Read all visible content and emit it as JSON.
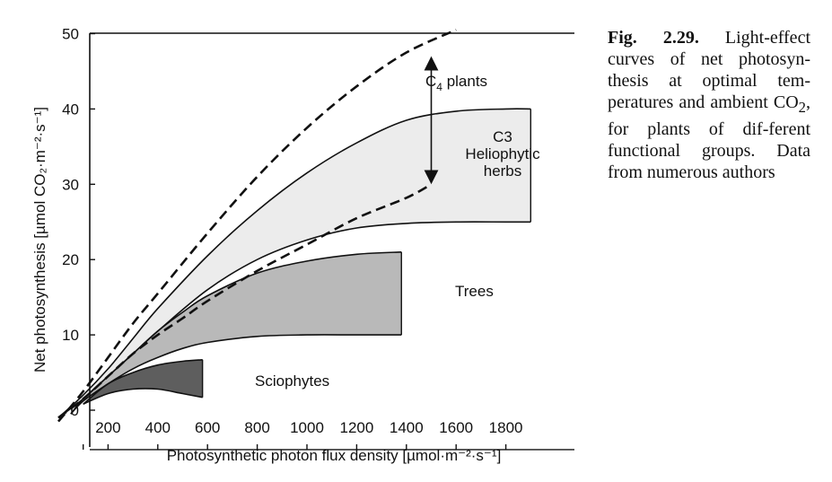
{
  "caption": {
    "fig_number": "Fig. 2.29.",
    "text_before_sub": "Light-effect curves of net photosyn-thesis at optimal tem-peratures and ambient CO",
    "subscript": "2",
    "text_after_sub": ", for plants of dif-ferent functional groups. Data from numerous authors"
  },
  "chart_data": {
    "type": "area",
    "xlabel": "Photosynthetic photon flux density [µmol·m⁻²·s⁻¹]",
    "ylabel": "Net photosynthesis [µmol CO₂·m⁻²·s⁻¹]",
    "xlim": [
      0,
      2000
    ],
    "ylim": [
      -5,
      50
    ],
    "x_ticks": [
      200,
      400,
      600,
      800,
      1000,
      1200,
      1400,
      1600,
      1800
    ],
    "x_tick_labels": [
      "200",
      "400",
      "600",
      "800",
      "1000",
      "1200",
      "1400",
      "1600",
      "1800"
    ],
    "y_ticks": [
      0,
      10,
      20,
      30,
      40,
      50
    ],
    "y_tick_labels": [
      "0",
      "10",
      "20",
      "30",
      "40",
      "50"
    ],
    "grid": false,
    "bands": [
      {
        "label": "C3 Heliophytic herbs",
        "label_lines": [
          "C3",
          "Heliophytic",
          "herbs"
        ],
        "fill": "#ececec",
        "upper": [
          [
            0,
            -1
          ],
          [
            100,
            2
          ],
          [
            200,
            5.5
          ],
          [
            300,
            9.5
          ],
          [
            400,
            13.5
          ],
          [
            600,
            20.5
          ],
          [
            800,
            26.5
          ],
          [
            1000,
            31.5
          ],
          [
            1200,
            35.5
          ],
          [
            1400,
            38.5
          ],
          [
            1600,
            39.7
          ],
          [
            1800,
            40
          ],
          [
            1900,
            40
          ]
        ],
        "lower": [
          [
            0,
            -1
          ],
          [
            100,
            1.5
          ],
          [
            200,
            4.5
          ],
          [
            300,
            7.5
          ],
          [
            400,
            10.5
          ],
          [
            600,
            16
          ],
          [
            800,
            20
          ],
          [
            1000,
            22.6
          ],
          [
            1200,
            24.2
          ],
          [
            1400,
            24.8
          ],
          [
            1600,
            25
          ],
          [
            1800,
            25
          ],
          [
            1900,
            25
          ]
        ]
      },
      {
        "label": "Trees",
        "label_lines": [
          "Trees"
        ],
        "fill": "#b9b9b9",
        "upper": [
          [
            50,
            -0.5
          ],
          [
            100,
            1.5
          ],
          [
            200,
            4.5
          ],
          [
            300,
            7.5
          ],
          [
            400,
            10.5
          ],
          [
            500,
            13
          ],
          [
            600,
            15.2
          ],
          [
            800,
            18.2
          ],
          [
            1000,
            19.8
          ],
          [
            1200,
            20.7
          ],
          [
            1380,
            21
          ]
        ],
        "lower": [
          [
            50,
            -0.5
          ],
          [
            100,
            1.2
          ],
          [
            200,
            3.5
          ],
          [
            300,
            5.5
          ],
          [
            400,
            7
          ],
          [
            500,
            8.2
          ],
          [
            600,
            9
          ],
          [
            800,
            9.8
          ],
          [
            1000,
            10
          ],
          [
            1200,
            10
          ],
          [
            1380,
            10
          ]
        ]
      },
      {
        "label": "Sciophytes",
        "label_lines": [
          "Sciophytes"
        ],
        "fill": "#5e5e5e",
        "upper": [
          [
            100,
            0.8
          ],
          [
            200,
            3.5
          ],
          [
            300,
            5
          ],
          [
            400,
            6
          ],
          [
            500,
            6.5
          ],
          [
            580,
            6.7
          ]
        ],
        "lower": [
          [
            100,
            0.8
          ],
          [
            200,
            2.2
          ],
          [
            300,
            2.8
          ],
          [
            400,
            2.8
          ],
          [
            500,
            2.2
          ],
          [
            580,
            1.7
          ]
        ]
      }
    ],
    "series": [
      {
        "label": "C4 plants",
        "label_main": "C",
        "label_sub": "4",
        "label_rest": " plants",
        "style": "dashed",
        "points": [
          [
            0,
            -1.5
          ],
          [
            100,
            2.5
          ],
          [
            200,
            7
          ],
          [
            300,
            11.5
          ],
          [
            400,
            15.5
          ],
          [
            600,
            23.5
          ],
          [
            800,
            31
          ],
          [
            1000,
            37.5
          ],
          [
            1200,
            43
          ],
          [
            1400,
            47.5
          ],
          [
            1600,
            50.5
          ]
        ]
      },
      {
        "label": "C3 herbs lower dashed",
        "style": "dashed",
        "points": [
          [
            0,
            -1
          ],
          [
            100,
            1.5
          ],
          [
            200,
            4.5
          ],
          [
            300,
            7.5
          ],
          [
            400,
            10
          ],
          [
            500,
            12.2
          ],
          [
            600,
            14.5
          ],
          [
            800,
            18.5
          ],
          [
            1000,
            22
          ],
          [
            1200,
            25.5
          ],
          [
            1400,
            28.2
          ],
          [
            1500,
            30
          ]
        ]
      }
    ],
    "arrow": {
      "x": 1500,
      "y_from": 30,
      "y_to": 47
    }
  }
}
